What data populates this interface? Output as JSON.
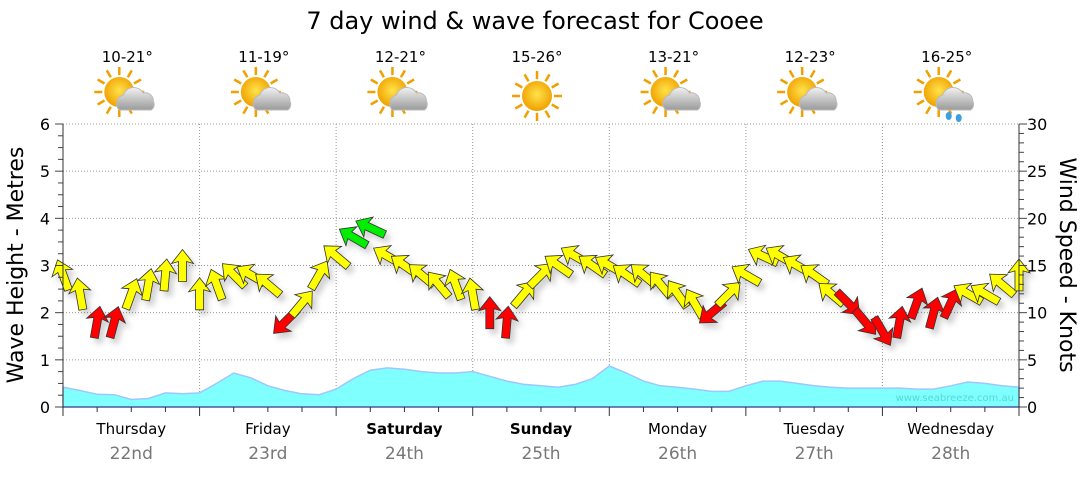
{
  "chart_data": {
    "type": "area",
    "title": "7 day wind & wave forecast for Cooee",
    "ylabel_left": "Wave Height - Metres",
    "ylabel_right": "Wind Speed - Knots",
    "ylim_left": [
      0,
      6
    ],
    "ylim_right": [
      0,
      30
    ],
    "yticks_left": [
      "0",
      "1",
      "2",
      "3",
      "4",
      "5",
      "6"
    ],
    "yticks_right": [
      "0",
      "5",
      "10",
      "15",
      "20",
      "25",
      "30"
    ],
    "grid": true,
    "watermark": "www.seabreeze.com.au",
    "days": [
      {
        "name": "Thursday",
        "date": "22nd",
        "bold": false,
        "temp": "10-21°",
        "icon": "partly-cloudy"
      },
      {
        "name": "Friday",
        "date": "23rd",
        "bold": false,
        "temp": "11-19°",
        "icon": "partly-cloudy"
      },
      {
        "name": "Saturday",
        "date": "24th",
        "bold": true,
        "temp": "12-21°",
        "icon": "partly-cloudy"
      },
      {
        "name": "Sunday",
        "date": "25th",
        "bold": true,
        "temp": "15-26°",
        "icon": "sunny"
      },
      {
        "name": "Monday",
        "date": "26th",
        "bold": false,
        "temp": "13-21°",
        "icon": "partly-cloudy"
      },
      {
        "name": "Tuesday",
        "date": "27th",
        "bold": false,
        "temp": "12-23°",
        "icon": "partly-cloudy"
      },
      {
        "name": "Wednesday",
        "date": "28th",
        "bold": false,
        "temp": "16-25°",
        "icon": "cloud-rain"
      }
    ],
    "wave_series": {
      "name": "Wave Height (m)",
      "interval_hours": 3,
      "color": "#80ffff",
      "values": [
        0.42,
        0.35,
        0.27,
        0.26,
        0.16,
        0.18,
        0.3,
        0.28,
        0.3,
        0.5,
        0.72,
        0.62,
        0.45,
        0.35,
        0.28,
        0.26,
        0.38,
        0.6,
        0.78,
        0.83,
        0.8,
        0.75,
        0.72,
        0.72,
        0.75,
        0.65,
        0.55,
        0.48,
        0.45,
        0.42,
        0.48,
        0.6,
        0.87,
        0.72,
        0.55,
        0.45,
        0.42,
        0.38,
        0.33,
        0.33,
        0.45,
        0.55,
        0.55,
        0.5,
        0.45,
        0.42,
        0.4,
        0.4,
        0.4,
        0.4,
        0.38,
        0.38,
        0.45,
        0.53,
        0.5,
        0.45,
        0.42
      ]
    },
    "wind_series": {
      "name": "Wind Speed (knots)",
      "interval_hours": 3,
      "speed": [
        14,
        12,
        9,
        9,
        12,
        13,
        14,
        15,
        12,
        13,
        14,
        14,
        13,
        9,
        11,
        14,
        16,
        18,
        19,
        16,
        15,
        14,
        13,
        13,
        12,
        10,
        9,
        12,
        14,
        15,
        16,
        15,
        15,
        14,
        14,
        13,
        12,
        11,
        10,
        12,
        14,
        16,
        16,
        15,
        14,
        12,
        11,
        9,
        8,
        9,
        11,
        10,
        11,
        12,
        12,
        13,
        14
      ],
      "direction_deg": [
        -20,
        -10,
        10,
        15,
        20,
        10,
        5,
        0,
        0,
        -20,
        -45,
        -60,
        -50,
        225,
        40,
        30,
        -50,
        -60,
        -65,
        -60,
        -55,
        -50,
        -40,
        -20,
        -10,
        0,
        5,
        40,
        45,
        -55,
        -60,
        -55,
        -60,
        -55,
        -50,
        -40,
        -35,
        -30,
        230,
        45,
        -60,
        -65,
        -60,
        -60,
        -55,
        -50,
        135,
        140,
        150,
        10,
        20,
        15,
        25,
        -60,
        -60,
        -50,
        0
      ],
      "colors": [
        "#ffff00",
        "#ffff00",
        "#ff0000",
        "#ff0000",
        "#ffff00",
        "#ffff00",
        "#ffff00",
        "#ffff00",
        "#ffff00",
        "#ffff00",
        "#ffff00",
        "#ffff00",
        "#ffff00",
        "#ff0000",
        "#ffff00",
        "#ffff00",
        "#ffff00",
        "#00ee00",
        "#00ee00",
        "#ffff00",
        "#ffff00",
        "#ffff00",
        "#ffff00",
        "#ffff00",
        "#ffff00",
        "#ff0000",
        "#ff0000",
        "#ffff00",
        "#ffff00",
        "#ffff00",
        "#ffff00",
        "#ffff00",
        "#ffff00",
        "#ffff00",
        "#ffff00",
        "#ffff00",
        "#ffff00",
        "#ffff00",
        "#ff0000",
        "#ffff00",
        "#ffff00",
        "#ffff00",
        "#ffff00",
        "#ffff00",
        "#ffff00",
        "#ffff00",
        "#ff0000",
        "#ff0000",
        "#ff0000",
        "#ff0000",
        "#ff0000",
        "#ff0000",
        "#ff0000",
        "#ffff00",
        "#ffff00",
        "#ffff00",
        "#ffff00"
      ]
    }
  }
}
